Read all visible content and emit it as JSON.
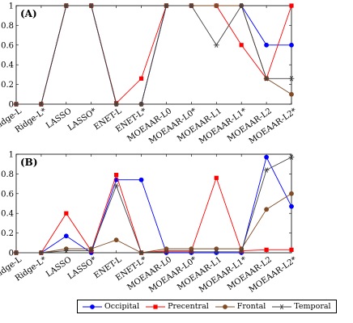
{
  "chart_data": [
    {
      "type": "line",
      "panel_label": "(A)",
      "categories": [
        "Ridge-L",
        "Ridge-L*",
        "LASSO",
        "LASSO*",
        "ENET-L",
        "ENET-L*",
        "MOEAAR-L0",
        "MOEAAR-L0*",
        "MOEAAR-L1",
        "MOEAAR-L1*",
        "MOEAAR-L2",
        "MOEAAR-L2*"
      ],
      "ylim": [
        0,
        1
      ],
      "yticks": [
        "0",
        "0.2",
        "0.4",
        "0.6",
        "0.8",
        "1"
      ],
      "grid": false,
      "series": [
        {
          "name": "Occipital",
          "values": [
            0,
            0,
            1,
            1,
            0,
            0,
            1,
            1,
            1,
            1,
            0.6,
            0.6
          ]
        },
        {
          "name": "Precentral",
          "values": [
            0,
            0,
            1,
            1,
            0.01,
            0.26,
            1,
            1,
            1,
            0.6,
            0.26,
            1
          ]
        },
        {
          "name": "Frontal",
          "values": [
            0,
            0,
            1,
            1,
            0,
            0,
            1,
            1,
            1,
            1,
            0.26,
            0.1
          ]
        },
        {
          "name": "Temporal",
          "values": [
            0,
            0,
            1,
            1,
            0,
            0,
            1,
            1,
            0.6,
            1,
            0.26,
            0.26
          ]
        }
      ]
    },
    {
      "type": "line",
      "panel_label": "(B)",
      "categories": [
        "Ridge-L",
        "Ridge-L*",
        "LASSO",
        "LASSO*",
        "ENET-L",
        "ENET-L*",
        "MOEAAR-L0",
        "MOEAAR-L0*",
        "MOEAAR-L1",
        "MOEAAR-L1*",
        "MOEAAR-L2",
        "MOEAAR-L2*"
      ],
      "ylim": [
        0,
        1
      ],
      "yticks": [
        "0",
        "0.2",
        "0.4",
        "0.6",
        "0.8",
        "1"
      ],
      "grid": false,
      "series": [
        {
          "name": "Occipital",
          "values": [
            0,
            0,
            0.17,
            0,
            0.74,
            0.74,
            0,
            0,
            0,
            0,
            0.97,
            0.47
          ]
        },
        {
          "name": "Precentral",
          "values": [
            0,
            0,
            0.4,
            0.02,
            0.79,
            0,
            0.02,
            0.02,
            0.76,
            0.02,
            0.03,
            0.03
          ]
        },
        {
          "name": "Frontal",
          "values": [
            0,
            0,
            0.04,
            0.04,
            0.13,
            0,
            0.04,
            0.04,
            0.04,
            0.04,
            0.44,
            0.6
          ]
        },
        {
          "name": "Temporal",
          "values": [
            0,
            0,
            0.02,
            0.02,
            0.68,
            0,
            0.01,
            0.01,
            0.01,
            0.01,
            0.84,
            0.97
          ]
        }
      ]
    }
  ],
  "legend": {
    "placement": "bottom-center",
    "items": [
      {
        "label": "Occipital",
        "color": "#0000ff",
        "marker": "circle"
      },
      {
        "label": "Precentral",
        "color": "#ff0000",
        "marker": "square"
      },
      {
        "label": "Frontal",
        "color": "#7f4c26",
        "marker": "circle"
      },
      {
        "label": "Temporal",
        "color": "#404040",
        "marker": "star"
      }
    ]
  }
}
